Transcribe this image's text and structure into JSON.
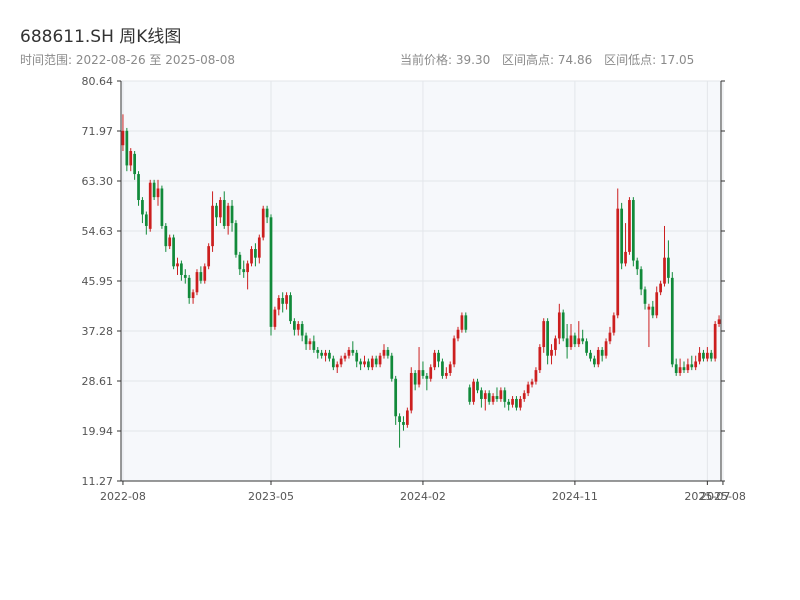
{
  "header": {
    "title": "688611.SH 周K线图",
    "range_text": "时间范围: 2022-08-26 至 2025-08-08",
    "current_price_text": "当前价格: 39.30",
    "high_text": "区间高点: 74.86",
    "low_text": "区间低点: 17.05"
  },
  "chart_data": {
    "type": "candlestick",
    "title": "688611.SH 周K线图",
    "xlabel": "",
    "ylabel": "",
    "ylim": [
      11.27,
      80.64
    ],
    "y_ticks": [
      "80.64",
      "71.97",
      "63.30",
      "54.63",
      "45.95",
      "37.28",
      "28.61",
      "19.94",
      "11.27"
    ],
    "x_range": [
      "2022-08-26",
      "2025-08-08"
    ],
    "x_ticks": [
      {
        "label": "2022-08",
        "index": 0
      },
      {
        "label": "2023-05",
        "index": 38
      },
      {
        "label": "2024-02",
        "index": 77
      },
      {
        "label": "2024-11",
        "index": 116
      },
      {
        "label": "2025-07",
        "index": 150
      },
      {
        "label": "2025-08",
        "index": 154
      }
    ],
    "grid": true,
    "colors": {
      "up": "#cc1f1f",
      "down": "#118a3a",
      "plot_bg": "#f6f8fb",
      "grid": "#e3e6ea"
    },
    "candles": [
      [
        69.5,
        72.0,
        74.86,
        68.5
      ],
      [
        72.0,
        66.0,
        72.5,
        65.0
      ],
      [
        66.0,
        68.5,
        69.0,
        65.0
      ],
      [
        68.0,
        64.5,
        68.5,
        63.5
      ],
      [
        64.5,
        60.0,
        65.0,
        59.0
      ],
      [
        60.0,
        57.5,
        60.5,
        56.0
      ],
      [
        57.5,
        55.5,
        58.0,
        54.0
      ],
      [
        55.0,
        63.0,
        63.5,
        54.5
      ],
      [
        63.0,
        60.5,
        63.5,
        60.0
      ],
      [
        60.5,
        62.0,
        63.5,
        59.0
      ],
      [
        62.0,
        55.5,
        62.5,
        55.0
      ],
      [
        55.5,
        52.0,
        56.0,
        51.0
      ],
      [
        52.0,
        53.5,
        54.0,
        51.5
      ],
      [
        53.5,
        48.5,
        54.0,
        48.0
      ],
      [
        48.5,
        49.0,
        50.0,
        47.0
      ],
      [
        49.0,
        47.0,
        49.5,
        46.0
      ],
      [
        47.0,
        46.5,
        48.0,
        45.5
      ],
      [
        46.5,
        43.0,
        47.0,
        42.0
      ],
      [
        43.0,
        44.0,
        44.5,
        42.0
      ],
      [
        44.0,
        47.5,
        48.0,
        43.5
      ],
      [
        47.5,
        46.0,
        48.5,
        45.5
      ],
      [
        46.0,
        48.5,
        49.0,
        45.5
      ],
      [
        48.5,
        52.0,
        52.5,
        48.0
      ],
      [
        52.0,
        59.0,
        61.5,
        51.0
      ],
      [
        59.0,
        57.0,
        59.5,
        55.5
      ],
      [
        57.0,
        60.0,
        60.5,
        56.0
      ],
      [
        60.0,
        55.5,
        61.5,
        55.0
      ],
      [
        55.5,
        59.0,
        59.5,
        54.0
      ],
      [
        59.0,
        56.0,
        60.0,
        54.5
      ],
      [
        56.0,
        50.5,
        56.5,
        50.0
      ],
      [
        50.5,
        48.0,
        51.0,
        47.0
      ],
      [
        48.0,
        47.5,
        49.5,
        46.5
      ],
      [
        47.5,
        49.0,
        49.5,
        44.5
      ],
      [
        49.0,
        51.5,
        52.0,
        48.5
      ],
      [
        51.5,
        50.0,
        52.5,
        48.5
      ],
      [
        50.0,
        53.5,
        54.0,
        49.0
      ],
      [
        53.5,
        58.5,
        59.0,
        53.0
      ],
      [
        58.5,
        57.0,
        59.0,
        56.0
      ],
      [
        57.0,
        38.0,
        57.5,
        36.5
      ],
      [
        38.0,
        41.0,
        41.5,
        37.5
      ],
      [
        41.0,
        43.0,
        43.5,
        40.0
      ],
      [
        43.0,
        42.0,
        44.0,
        40.5
      ],
      [
        42.0,
        43.5,
        44.0,
        41.0
      ],
      [
        43.5,
        39.0,
        44.0,
        38.5
      ],
      [
        39.0,
        37.5,
        39.5,
        36.5
      ],
      [
        37.5,
        38.5,
        39.0,
        36.5
      ],
      [
        38.5,
        36.5,
        39.0,
        35.5
      ],
      [
        36.5,
        35.0,
        37.0,
        34.0
      ],
      [
        35.0,
        35.5,
        36.0,
        34.0
      ],
      [
        35.5,
        34.0,
        36.5,
        33.5
      ],
      [
        34.0,
        33.5,
        34.5,
        32.5
      ],
      [
        33.5,
        33.0,
        34.0,
        32.5
      ],
      [
        33.0,
        33.5,
        34.0,
        32.0
      ],
      [
        33.5,
        32.5,
        34.0,
        32.0
      ],
      [
        32.5,
        31.0,
        33.0,
        30.5
      ],
      [
        31.0,
        31.5,
        32.0,
        30.0
      ],
      [
        31.5,
        32.5,
        33.0,
        31.0
      ],
      [
        32.5,
        33.0,
        33.5,
        32.0
      ],
      [
        33.0,
        34.0,
        34.5,
        32.5
      ],
      [
        34.0,
        33.5,
        35.5,
        33.0
      ],
      [
        33.5,
        32.0,
        34.0,
        31.0
      ],
      [
        32.0,
        31.5,
        32.5,
        30.5
      ],
      [
        31.5,
        32.0,
        33.0,
        31.0
      ],
      [
        32.0,
        31.0,
        32.5,
        30.5
      ],
      [
        31.0,
        32.5,
        33.0,
        30.5
      ],
      [
        32.5,
        31.5,
        33.0,
        31.0
      ],
      [
        31.5,
        33.0,
        33.5,
        31.0
      ],
      [
        33.0,
        34.0,
        35.0,
        32.5
      ],
      [
        34.0,
        33.0,
        34.5,
        32.5
      ],
      [
        33.0,
        29.0,
        33.5,
        28.5
      ],
      [
        29.0,
        22.5,
        29.5,
        21.0
      ],
      [
        22.5,
        21.5,
        23.0,
        17.05
      ],
      [
        21.5,
        21.0,
        22.5,
        20.0
      ],
      [
        21.0,
        23.5,
        24.0,
        20.5
      ],
      [
        23.5,
        30.0,
        31.0,
        23.0
      ],
      [
        30.0,
        28.0,
        30.5,
        27.0
      ],
      [
        28.0,
        30.5,
        34.5,
        27.5
      ],
      [
        30.5,
        29.5,
        32.0,
        29.0
      ],
      [
        29.5,
        29.0,
        30.0,
        27.0
      ],
      [
        29.0,
        31.0,
        31.5,
        28.5
      ],
      [
        31.0,
        33.5,
        34.0,
        30.5
      ],
      [
        33.5,
        32.0,
        34.0,
        31.0
      ],
      [
        32.0,
        29.5,
        32.5,
        29.0
      ],
      [
        29.5,
        30.0,
        31.0,
        29.0
      ],
      [
        30.0,
        31.5,
        32.0,
        29.5
      ],
      [
        31.5,
        36.0,
        36.5,
        31.0
      ],
      [
        36.0,
        37.5,
        38.0,
        35.5
      ],
      [
        37.5,
        40.0,
        40.5,
        37.0
      ],
      [
        40.0,
        37.5,
        40.5,
        37.0
      ],
      [
        27.5,
        25.0,
        28.0,
        24.5
      ],
      [
        25.0,
        28.5,
        29.0,
        24.5
      ],
      [
        28.5,
        27.0,
        29.0,
        26.5
      ],
      [
        27.0,
        25.5,
        27.5,
        24.0
      ],
      [
        25.5,
        26.5,
        27.0,
        23.5
      ],
      [
        26.5,
        25.0,
        27.0,
        24.5
      ],
      [
        25.0,
        26.0,
        26.5,
        24.5
      ],
      [
        26.0,
        25.5,
        27.5,
        25.0
      ],
      [
        25.5,
        27.0,
        27.5,
        25.0
      ],
      [
        27.0,
        25.0,
        27.5,
        24.0
      ],
      [
        25.0,
        24.5,
        25.5,
        23.5
      ],
      [
        24.5,
        25.5,
        26.0,
        24.0
      ],
      [
        25.5,
        24.0,
        26.0,
        23.5
      ],
      [
        24.0,
        25.5,
        26.0,
        23.5
      ],
      [
        25.5,
        26.5,
        27.0,
        25.0
      ],
      [
        26.5,
        28.0,
        28.5,
        26.0
      ],
      [
        28.0,
        28.5,
        29.0,
        27.5
      ],
      [
        28.5,
        30.5,
        31.0,
        28.0
      ],
      [
        30.5,
        34.5,
        35.0,
        30.0
      ],
      [
        34.5,
        39.0,
        39.5,
        33.5
      ],
      [
        39.0,
        33.0,
        39.5,
        31.5
      ],
      [
        33.0,
        34.0,
        35.0,
        31.5
      ],
      [
        34.0,
        36.0,
        36.5,
        33.0
      ],
      [
        36.0,
        40.5,
        42.0,
        35.0
      ],
      [
        40.5,
        36.0,
        41.0,
        35.5
      ],
      [
        36.0,
        34.5,
        38.5,
        32.5
      ],
      [
        34.5,
        36.5,
        38.5,
        34.0
      ],
      [
        36.5,
        35.0,
        37.0,
        34.5
      ],
      [
        35.0,
        36.0,
        39.0,
        34.5
      ],
      [
        36.0,
        35.5,
        37.5,
        35.0
      ],
      [
        35.5,
        33.5,
        36.0,
        33.0
      ],
      [
        33.5,
        32.5,
        34.0,
        32.0
      ],
      [
        32.5,
        31.5,
        33.0,
        31.0
      ],
      [
        31.5,
        34.0,
        34.5,
        31.0
      ],
      [
        34.0,
        33.0,
        34.5,
        32.0
      ],
      [
        33.0,
        35.5,
        36.0,
        32.5
      ],
      [
        35.5,
        37.0,
        38.0,
        35.0
      ],
      [
        37.0,
        40.0,
        40.5,
        36.5
      ],
      [
        40.0,
        58.5,
        62.0,
        39.5
      ],
      [
        58.5,
        49.0,
        59.5,
        48.0
      ],
      [
        49.0,
        51.0,
        56.0,
        48.5
      ],
      [
        51.0,
        60.0,
        60.5,
        50.5
      ],
      [
        60.0,
        49.5,
        60.5,
        48.5
      ],
      [
        49.5,
        48.0,
        50.0,
        47.0
      ],
      [
        48.0,
        44.5,
        48.5,
        43.5
      ],
      [
        44.5,
        42.0,
        45.0,
        41.0
      ],
      [
        41.0,
        41.5,
        42.0,
        34.5
      ],
      [
        41.5,
        40.0,
        42.5,
        39.5
      ],
      [
        40.0,
        44.0,
        45.0,
        39.5
      ],
      [
        44.0,
        45.5,
        46.0,
        43.5
      ],
      [
        45.5,
        50.0,
        55.5,
        45.0
      ],
      [
        50.0,
        46.5,
        53.0,
        45.5
      ],
      [
        46.5,
        31.5,
        47.5,
        31.0
      ],
      [
        31.5,
        30.0,
        32.5,
        29.5
      ],
      [
        30.0,
        31.0,
        32.5,
        29.5
      ],
      [
        31.0,
        30.5,
        32.0,
        30.0
      ],
      [
        30.5,
        31.5,
        32.5,
        30.0
      ],
      [
        31.5,
        31.0,
        33.0,
        30.5
      ],
      [
        31.0,
        32.0,
        33.0,
        30.5
      ],
      [
        32.0,
        33.5,
        34.5,
        31.5
      ],
      [
        33.5,
        32.5,
        34.0,
        32.0
      ],
      [
        32.5,
        33.5,
        34.5,
        32.0
      ],
      [
        33.5,
        32.5,
        34.0,
        32.0
      ],
      [
        32.5,
        38.5,
        39.0,
        32.0
      ],
      [
        38.5,
        39.3,
        40.0,
        38.0
      ]
    ]
  }
}
